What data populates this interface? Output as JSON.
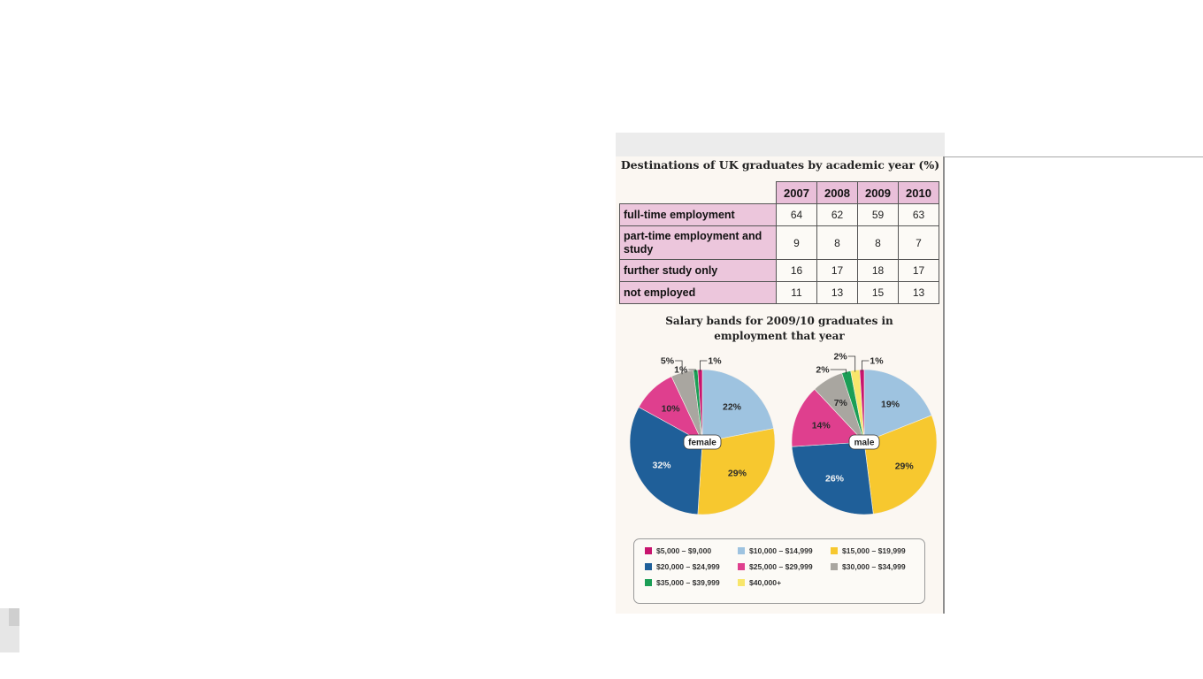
{
  "chart_data": [
    {
      "type": "table",
      "title": "Destinations of UK graduates by academic year (%)",
      "columns": [
        "2007",
        "2008",
        "2009",
        "2010"
      ],
      "rows": [
        {
          "label": "full-time employment",
          "values": [
            64,
            62,
            59,
            63
          ]
        },
        {
          "label": "part-time employment and study",
          "values": [
            9,
            8,
            8,
            7
          ]
        },
        {
          "label": "further study only",
          "values": [
            16,
            17,
            18,
            17
          ]
        },
        {
          "label": "not employed",
          "values": [
            11,
            13,
            15,
            13
          ]
        }
      ]
    },
    {
      "type": "pie",
      "title": "Salary bands for 2009/10 graduates in employment that year",
      "categories": [
        "$5,000 – $9,000",
        "$10,000 – $14,999",
        "$15,000 – $19,999",
        "$20,000 – $24,999",
        "$25,000 – $29,999",
        "$30,000 – $34,999",
        "$35,000 – $39,999",
        "$40,000+"
      ],
      "colors": [
        "#c8146e",
        "#9ec3e0",
        "#f7c82f",
        "#1f5f99",
        "#df3f8e",
        "#a9a6a0",
        "#1b9e56",
        "#f8e66b"
      ],
      "series": [
        {
          "name": "female",
          "values": [
            1,
            22,
            29,
            32,
            10,
            5,
            1,
            0
          ],
          "labels": [
            "1%",
            "22%",
            "29%",
            "32%",
            "10%",
            "5%",
            "1%",
            ""
          ]
        },
        {
          "name": "male",
          "values": [
            1,
            19,
            29,
            26,
            14,
            7,
            2,
            2
          ],
          "labels": [
            "1%",
            "19%",
            "29%",
            "26%",
            "14%",
            "7%",
            "2%",
            "2%"
          ]
        }
      ],
      "legend": "bottom"
    }
  ]
}
